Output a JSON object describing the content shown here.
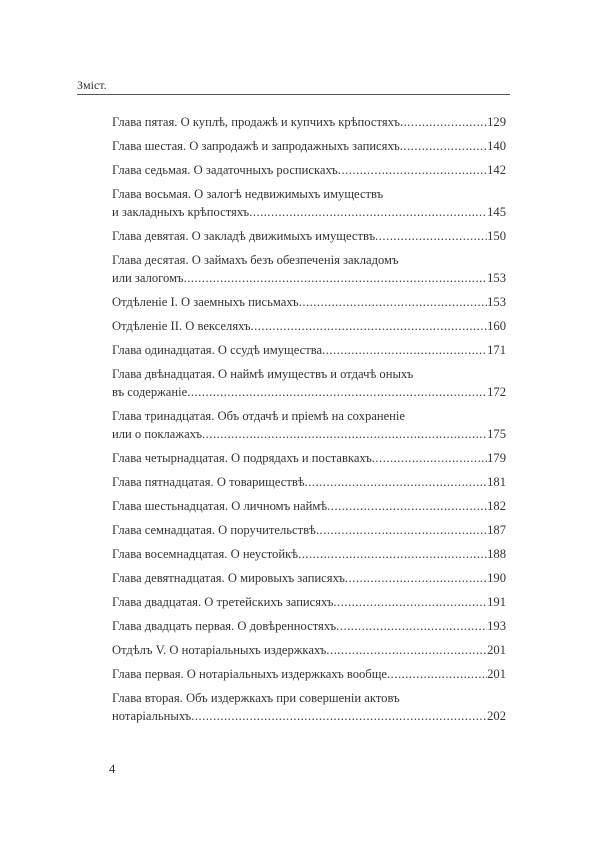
{
  "header": {
    "title": "Зміст."
  },
  "entries": [
    {
      "lines": [
        "Глава пятая. О куплѣ, продажѣ и купчихъ крѣпостяхъ"
      ],
      "page": "129"
    },
    {
      "lines": [
        "Глава шестая. О запродажѣ и запродажныхъ записяхъ"
      ],
      "page": "140"
    },
    {
      "lines": [
        "Глава седьмая. О задаточныхъ роспискахъ"
      ],
      "page": "142"
    },
    {
      "lines": [
        "Глава восьмая. О залогѣ недвижимыхъ имуществъ",
        "и закладныхъ крѣпостяхъ"
      ],
      "page": "145"
    },
    {
      "lines": [
        "Глава девятая. О закладѣ движимыхъ имуществъ"
      ],
      "page": "150"
    },
    {
      "lines": [
        "Глава десятая. О займахъ безъ обезпеченія закладомъ",
        "или залогомъ"
      ],
      "page": "153"
    },
    {
      "lines": [
        "Отдѣленіе I. О заемныхъ письмахъ"
      ],
      "page": "153"
    },
    {
      "lines": [
        "Отдѣленіе II. О векселяхъ"
      ],
      "page": "160"
    },
    {
      "lines": [
        "Глава одинадцатая. О ссудѣ имущества"
      ],
      "page": "171"
    },
    {
      "lines": [
        "Глава двѣнадцатая. О наймѣ имуществъ и отдачѣ оныхъ",
        "въ содержаніе"
      ],
      "page": "172"
    },
    {
      "lines": [
        "Глава тринадцатая. Объ отдачѣ и пріемѣ на сохраненіе",
        "или о поклажахъ"
      ],
      "page": "175"
    },
    {
      "lines": [
        "Глава четырнадцатая. О подрядахъ и поставкахъ"
      ],
      "page": "179"
    },
    {
      "lines": [
        "Глава пятнадцатая. О товариществѣ"
      ],
      "page": "181"
    },
    {
      "lines": [
        "Глава шестьнадцатая. О личномъ наймѣ"
      ],
      "page": "182"
    },
    {
      "lines": [
        "Глава семнадцатая. О поручительствѣ"
      ],
      "page": "187"
    },
    {
      "lines": [
        "Глава восемнадцатая. О неустойкѣ"
      ],
      "page": "188"
    },
    {
      "lines": [
        "Глава девятнадцатая. О мировыхъ записяхъ"
      ],
      "page": "190"
    },
    {
      "lines": [
        "Глава двадцатая. О третейскихъ записяхъ"
      ],
      "page": "191"
    },
    {
      "lines": [
        "Глава двадцать первая. О довѣренностяхъ"
      ],
      "page": "193"
    },
    {
      "lines": [
        "Отдѣлъ V. О нотаріальныхъ издержкахъ"
      ],
      "page": "201"
    },
    {
      "lines": [
        "Глава первая. О нотаріальныхъ издержкахъ вообще"
      ],
      "page": "201"
    },
    {
      "lines": [
        "Глава вторая. Объ издержкахъ при совершеніи актовъ",
        "нотаріальныхъ"
      ],
      "page": "202"
    }
  ],
  "footer": {
    "page_number": "4"
  }
}
